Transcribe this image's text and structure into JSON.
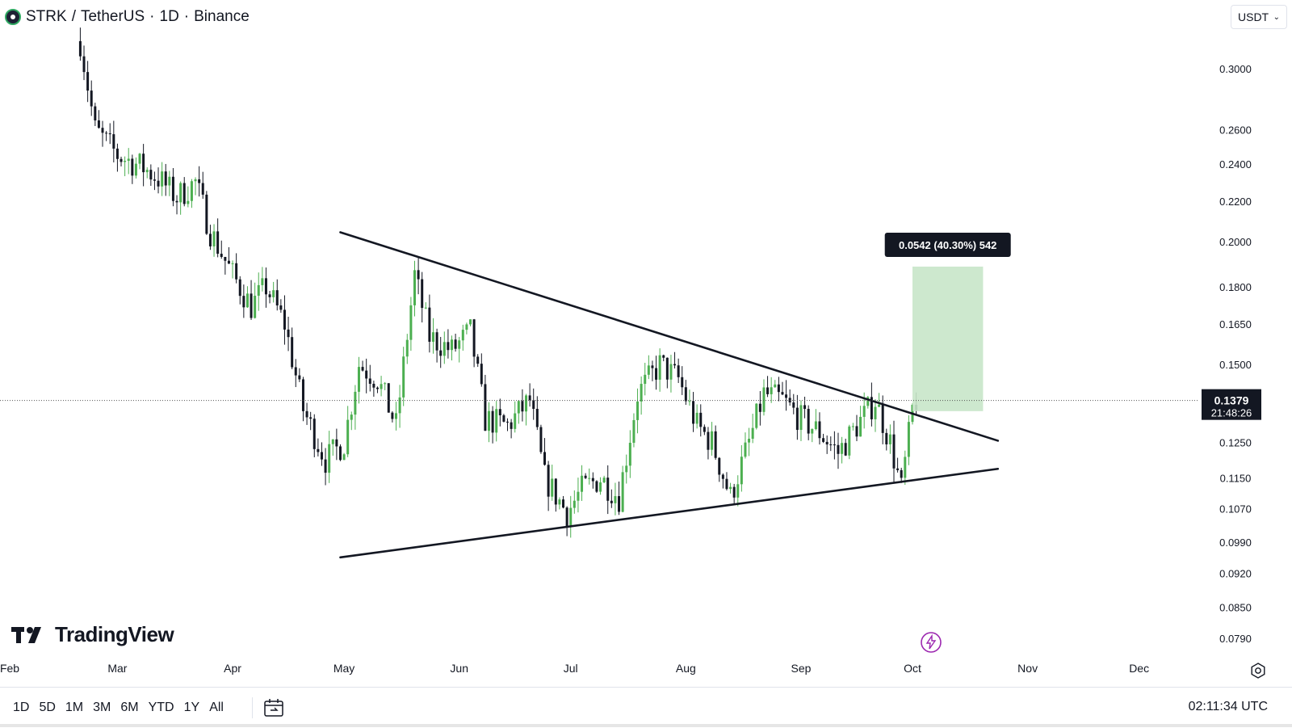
{
  "header": {
    "symbol": "STRK",
    "pair": "TetherUS",
    "interval": "1D",
    "exchange": "Binance"
  },
  "currency_select": {
    "value": "USDT"
  },
  "branding": {
    "logo_text": "TradingView"
  },
  "bottom_bar": {
    "ranges": [
      "1D",
      "5D",
      "1M",
      "3M",
      "6M",
      "YTD",
      "1Y",
      "All"
    ],
    "time_readout": "02:11:34 UTC"
  },
  "colors": {
    "up": "#26a69a",
    "up_light": "#7cc47f",
    "down": "#131722",
    "measure_fill": "#c8e6c9",
    "price_tag_bg": "#131722",
    "lightning": "#9c27b0"
  },
  "icons": [
    "calendar-icon",
    "settings-icon",
    "lightning-icon",
    "chevron-down-icon"
  ],
  "chart_data": {
    "type": "candlestick",
    "title": "",
    "x_axis": {
      "type": "date",
      "labels": [
        "Feb",
        "Mar",
        "Apr",
        "May",
        "Jun",
        "Jul",
        "Aug",
        "Sep",
        "Oct",
        "Nov",
        "Dec"
      ],
      "range": [
        "2024-02-01",
        "2024-12-31"
      ]
    },
    "y_axis": {
      "scale": "log",
      "position": "right",
      "tick_labels": [
        "0.3000",
        "0.2600",
        "0.2400",
        "0.2200",
        "0.2000",
        "0.1800",
        "0.1650",
        "0.1500",
        "0.1250",
        "0.1150",
        "0.1070",
        "0.0990",
        "0.0920",
        "0.0850",
        "0.0790"
      ],
      "range": [
        0.077,
        0.33
      ]
    },
    "current_price": {
      "value": "0.1379",
      "countdown": "21:48:26"
    },
    "measure": {
      "label": "0.0542 (40.30%) 542",
      "from_date": "2024-10-01",
      "to_date": "2024-10-20",
      "from_price": 0.1345,
      "to_price": 0.1887
    },
    "trendlines": [
      {
        "name": "upper",
        "from": [
          "2024-04-30",
          0.2045
        ],
        "to": [
          "2024-10-24",
          0.1255
        ]
      },
      {
        "name": "lower",
        "from": [
          "2024-04-30",
          0.0955
        ],
        "to": [
          "2024-10-24",
          0.1175
        ]
      }
    ],
    "grid": false,
    "legend": "none",
    "series": [
      {
        "name": "STRK/USDT",
        "anchors": [
          [
            "2024-02-20",
            0.32
          ],
          [
            "2024-02-24",
            0.26
          ],
          [
            "2024-03-01",
            0.245
          ],
          [
            "2024-03-08",
            0.238
          ],
          [
            "2024-03-12",
            0.232
          ],
          [
            "2024-03-17",
            0.222
          ],
          [
            "2024-03-22",
            0.23
          ],
          [
            "2024-03-26",
            0.205
          ],
          [
            "2024-04-01",
            0.185
          ],
          [
            "2024-04-06",
            0.172
          ],
          [
            "2024-04-10",
            0.18
          ],
          [
            "2024-04-15",
            0.165
          ],
          [
            "2024-04-20",
            0.135
          ],
          [
            "2024-04-26",
            0.12
          ],
          [
            "2024-05-01",
            0.125
          ],
          [
            "2024-05-05",
            0.15
          ],
          [
            "2024-05-10",
            0.145
          ],
          [
            "2024-05-15",
            0.13
          ],
          [
            "2024-05-20",
            0.185
          ],
          [
            "2024-05-24",
            0.16
          ],
          [
            "2024-05-30",
            0.155
          ],
          [
            "2024-06-04",
            0.162
          ],
          [
            "2024-06-08",
            0.132
          ],
          [
            "2024-06-14",
            0.13
          ],
          [
            "2024-06-20",
            0.138
          ],
          [
            "2024-06-24",
            0.115
          ],
          [
            "2024-06-30",
            0.106
          ],
          [
            "2024-07-04",
            0.112
          ],
          [
            "2024-07-09",
            0.115
          ],
          [
            "2024-07-14",
            0.11
          ],
          [
            "2024-07-19",
            0.14
          ],
          [
            "2024-07-25",
            0.15
          ],
          [
            "2024-07-30",
            0.145
          ],
          [
            "2024-08-04",
            0.13
          ],
          [
            "2024-08-08",
            0.125
          ],
          [
            "2024-08-13",
            0.11
          ],
          [
            "2024-08-18",
            0.125
          ],
          [
            "2024-08-22",
            0.14
          ],
          [
            "2024-08-27",
            0.138
          ],
          [
            "2024-09-01",
            0.132
          ],
          [
            "2024-09-06",
            0.128
          ],
          [
            "2024-09-11",
            0.122
          ],
          [
            "2024-09-16",
            0.13
          ],
          [
            "2024-09-21",
            0.138
          ],
          [
            "2024-09-25",
            0.125
          ],
          [
            "2024-09-28",
            0.112
          ],
          [
            "2024-10-01",
            0.135
          ],
          [
            "2024-10-02",
            0.1379
          ]
        ]
      }
    ]
  }
}
